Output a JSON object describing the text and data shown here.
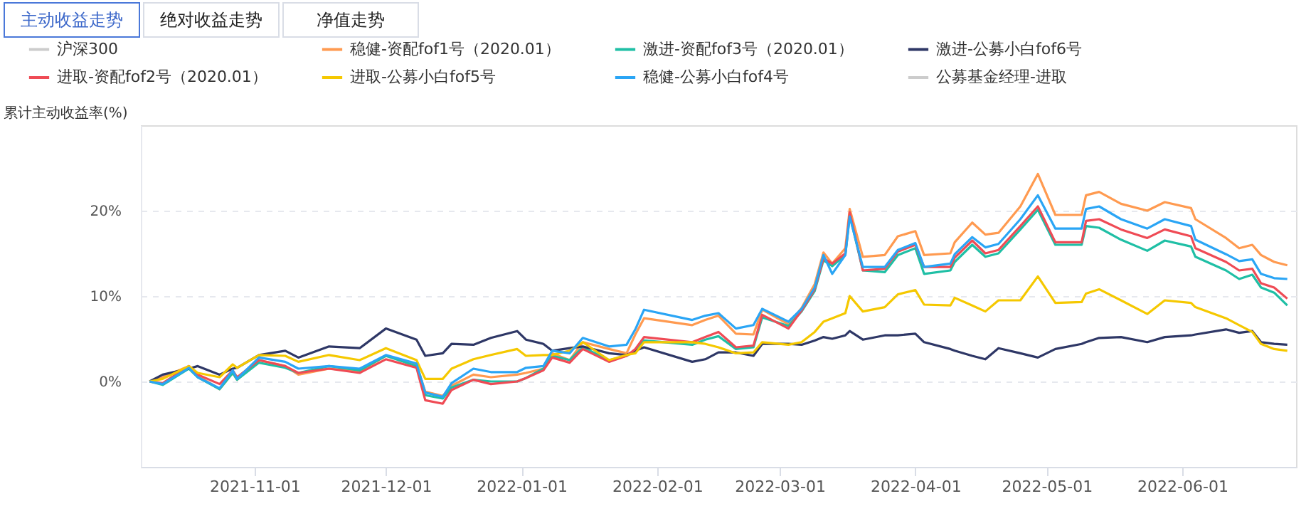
{
  "chart_data": {
    "type": "line",
    "ylabel": "累计主动收益率(%)",
    "annotations": [
      "主动收益走势",
      "绝对收益走势",
      "净值走势"
    ],
    "x": [
      "2021-10-08",
      "2021-10-11",
      "2021-10-17",
      "2021-10-19",
      "2021-10-24",
      "2021-10-27",
      "2021-10-28",
      "2021-11-02",
      "2021-11-08",
      "2021-11-11",
      "2021-11-18",
      "2021-11-25",
      "2021-12-01",
      "2021-12-08",
      "2021-12-10",
      "2021-12-14",
      "2021-12-16",
      "2021-12-21",
      "2021-12-25",
      "2021-12-31",
      "2022-01-02",
      "2022-01-06",
      "2022-01-08",
      "2022-01-12",
      "2022-01-15",
      "2022-01-21",
      "2022-01-25",
      "2022-01-27",
      "2022-01-29",
      "2022-02-09",
      "2022-02-12",
      "2022-02-15",
      "2022-02-19",
      "2022-02-23",
      "2022-02-25",
      "2022-03-03",
      "2022-03-06",
      "2022-03-09",
      "2022-03-11",
      "2022-03-13",
      "2022-03-16",
      "2022-03-17",
      "2022-03-20",
      "2022-03-25",
      "2022-03-28",
      "2022-04-01",
      "2022-04-03",
      "2022-04-09",
      "2022-04-10",
      "2022-04-14",
      "2022-04-17",
      "2022-04-20",
      "2022-04-25",
      "2022-04-29",
      "2022-05-03",
      "2022-05-09",
      "2022-05-10",
      "2022-05-13",
      "2022-05-18",
      "2022-05-24",
      "2022-05-28",
      "2022-06-03",
      "2022-06-04",
      "2022-06-11",
      "2022-06-14",
      "2022-06-17",
      "2022-06-19",
      "2022-06-22",
      "2022-06-25"
    ],
    "series": [
      {
        "name": "沪深300",
        "color": "#cccccc",
        "values": [
          null,
          null,
          null,
          null,
          null,
          null,
          null,
          null,
          null,
          null,
          null,
          null,
          null,
          null,
          null,
          null,
          null,
          null,
          null,
          null,
          null,
          null,
          null,
          null,
          null,
          null,
          null,
          null,
          null,
          null,
          null,
          null,
          null,
          null,
          null,
          null,
          null,
          null,
          null,
          null,
          null,
          null,
          null,
          null,
          null,
          null,
          null,
          null,
          null,
          null,
          null,
          null,
          null,
          null,
          null,
          null,
          null,
          null,
          null,
          null,
          null,
          null,
          null,
          null,
          null,
          null,
          null,
          null,
          null
        ]
      },
      {
        "name": "稳健-资配fof1号（2020.01）",
        "color": "#ff9a50",
        "values": [
          0,
          0.5,
          1.8,
          0.7,
          -0.9,
          1.0,
          0.2,
          2.5,
          1.8,
          0.8,
          1.5,
          1.2,
          3.0,
          2.0,
          -1.2,
          -1.7,
          -0.5,
          0.8,
          0.5,
          0.8,
          1.0,
          1.5,
          3.3,
          2.5,
          4.6,
          3.8,
          3.3,
          5.5,
          7.4,
          6.6,
          7.2,
          7.7,
          5.6,
          5.5,
          8.4,
          6.7,
          8.6,
          11.4,
          15.1,
          13.8,
          15.6,
          20.2,
          14.6,
          14.8,
          17.0,
          17.6,
          14.8,
          15.0,
          16.3,
          18.6,
          17.2,
          17.4,
          20.5,
          24.3,
          19.5,
          19.5,
          21.8,
          22.2,
          20.8,
          20.0,
          21.0,
          20.3,
          19.0,
          16.8,
          15.6,
          16.0,
          14.8,
          14.0,
          13.6
        ]
      },
      {
        "name": "激进-资配fof3号（2020.01）",
        "color": "#1fbfa5",
        "values": [
          0,
          -0.4,
          1.5,
          0.5,
          -0.9,
          1.0,
          0.2,
          2.2,
          1.6,
          1.0,
          1.8,
          1.3,
          3.0,
          1.8,
          -1.6,
          -2.0,
          -0.7,
          0.2,
          0.0,
          0.0,
          0.4,
          1.5,
          3.0,
          2.5,
          4.0,
          2.5,
          3.0,
          3.6,
          4.8,
          4.3,
          4.9,
          5.3,
          3.8,
          4.0,
          7.5,
          6.5,
          8.2,
          10.6,
          14.2,
          13.5,
          14.8,
          19.5,
          13.0,
          12.8,
          14.8,
          15.6,
          12.6,
          13.0,
          14.0,
          16.0,
          14.6,
          15.0,
          17.8,
          20.1,
          16.0,
          16.0,
          18.2,
          18.0,
          16.6,
          15.3,
          16.5,
          15.8,
          14.6,
          13.0,
          12.0,
          12.5,
          11.0,
          10.4,
          8.9
        ]
      },
      {
        "name": "激进-公募小白fof6号",
        "color": "#2e3766",
        "values": [
          0,
          0.8,
          1.5,
          1.8,
          0.8,
          1.5,
          1.6,
          3.1,
          3.6,
          2.8,
          4.1,
          3.9,
          6.2,
          4.9,
          3.0,
          3.3,
          4.4,
          4.3,
          5.1,
          5.9,
          4.9,
          4.4,
          3.6,
          3.9,
          4.1,
          3.3,
          3.1,
          3.6,
          4.0,
          2.3,
          2.6,
          3.4,
          3.4,
          3.0,
          4.4,
          4.4,
          4.3,
          4.8,
          5.2,
          5.0,
          5.4,
          5.9,
          4.9,
          5.4,
          5.4,
          5.6,
          4.6,
          3.8,
          3.6,
          3.0,
          2.6,
          3.9,
          3.3,
          2.8,
          3.8,
          4.4,
          4.6,
          5.1,
          5.2,
          4.6,
          5.2,
          5.4,
          5.5,
          6.1,
          5.7,
          5.9,
          4.6,
          4.4,
          4.3
        ]
      },
      {
        "name": "进取-资配fof2号（2020.01）",
        "color": "#ef4b55",
        "values": [
          0,
          -0.2,
          1.8,
          0.8,
          -0.3,
          1.3,
          0.5,
          2.5,
          1.8,
          1.0,
          1.5,
          1.0,
          2.6,
          1.6,
          -2.2,
          -2.6,
          -1.0,
          0.2,
          -0.3,
          0.0,
          0.4,
          1.3,
          2.8,
          2.2,
          3.8,
          2.3,
          3.0,
          3.8,
          5.2,
          4.6,
          5.2,
          5.8,
          4.0,
          4.2,
          7.8,
          6.2,
          8.3,
          10.8,
          14.4,
          13.8,
          15.0,
          19.8,
          13.0,
          13.2,
          15.2,
          16.0,
          13.4,
          13.4,
          14.5,
          16.5,
          15.0,
          15.4,
          18.2,
          20.5,
          16.3,
          16.3,
          18.8,
          19.0,
          17.8,
          16.8,
          17.8,
          17.0,
          15.6,
          14.0,
          13.0,
          13.2,
          11.5,
          11.0,
          9.7
        ]
      },
      {
        "name": "进取-公募小白fof5号",
        "color": "#f5c800",
        "values": [
          0,
          0.3,
          1.8,
          1.0,
          0.5,
          2.0,
          1.6,
          3.1,
          3.0,
          2.3,
          3.1,
          2.5,
          3.9,
          2.5,
          0.3,
          0.3,
          1.5,
          2.6,
          3.1,
          3.8,
          3.0,
          3.1,
          3.1,
          3.6,
          4.6,
          2.5,
          3.1,
          3.3,
          4.6,
          4.6,
          4.4,
          4.0,
          3.3,
          3.4,
          4.6,
          4.3,
          4.6,
          5.8,
          7.0,
          7.4,
          8.0,
          10.0,
          8.2,
          8.7,
          10.2,
          10.7,
          9.0,
          8.9,
          9.8,
          8.9,
          8.2,
          9.5,
          9.5,
          12.3,
          9.2,
          9.3,
          10.3,
          10.8,
          9.5,
          7.9,
          9.5,
          9.2,
          8.7,
          7.4,
          6.6,
          5.8,
          4.4,
          3.8,
          3.6
        ]
      },
      {
        "name": "稳健-公募小白fof4号",
        "color": "#2aa5f5",
        "values": [
          0,
          -0.3,
          1.6,
          0.5,
          -0.8,
          1.3,
          0.3,
          2.8,
          2.3,
          1.5,
          1.8,
          1.5,
          3.1,
          2.1,
          -1.3,
          -1.8,
          -0.2,
          1.5,
          1.1,
          1.1,
          1.6,
          1.8,
          3.6,
          3.3,
          5.1,
          4.1,
          4.3,
          6.1,
          8.4,
          7.2,
          7.7,
          8.0,
          6.2,
          6.6,
          8.5,
          7.0,
          8.5,
          11.0,
          14.8,
          12.6,
          14.8,
          19.3,
          13.4,
          13.4,
          15.4,
          16.2,
          13.4,
          13.8,
          14.9,
          16.9,
          15.7,
          16.1,
          19.0,
          21.8,
          17.9,
          17.9,
          20.2,
          20.5,
          19.0,
          17.9,
          19.0,
          18.2,
          16.6,
          14.9,
          14.1,
          14.3,
          12.6,
          12.1,
          12.0
        ]
      },
      {
        "name": "公募基金经理-进取",
        "color": "#cccccc",
        "values": [
          null,
          null,
          null,
          null,
          null,
          null,
          null,
          null,
          null,
          null,
          null,
          null,
          null,
          null,
          null,
          null,
          null,
          null,
          null,
          null,
          null,
          null,
          null,
          null,
          null,
          null,
          null,
          null,
          null,
          null,
          null,
          null,
          null,
          null,
          null,
          null,
          null,
          null,
          null,
          null,
          null,
          null,
          null,
          null,
          null,
          null,
          null,
          null,
          null,
          null,
          null,
          null,
          null,
          null,
          null,
          null,
          null,
          null,
          null,
          null,
          null,
          null,
          null,
          null,
          null,
          null,
          null,
          null,
          null
        ]
      }
    ],
    "xlim": [
      "2021-10-06",
      "2022-06-27"
    ],
    "xticks": [
      "2021-11-01",
      "2021-12-01",
      "2022-01-01",
      "2022-02-01",
      "2022-03-01",
      "2022-04-01",
      "2022-05-01",
      "2022-06-01"
    ],
    "ylim": [
      -10,
      30
    ],
    "yticks": [
      {
        "value": 0,
        "label": "0%"
      },
      {
        "value": 10,
        "label": "10%"
      },
      {
        "value": 20,
        "label": "20%"
      }
    ],
    "grid": "y",
    "legend": "top",
    "marker": "none",
    "line_style": "solid"
  }
}
